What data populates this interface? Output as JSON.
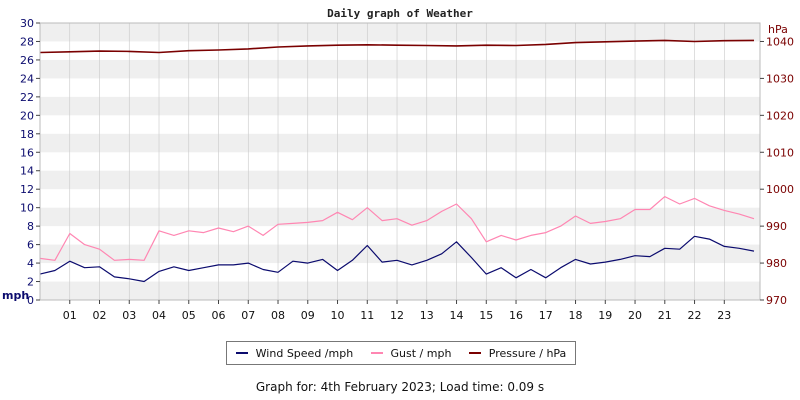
{
  "footer": "Graph for: 4th February 2023; Load time: 0.09 s",
  "colors": {
    "wind": "#0b0b6e",
    "gust": "#ff86b2",
    "pressure": "#7a0000",
    "left_axis": "#0b0b6e",
    "right_axis": "#7a0000",
    "band": "#efefef",
    "grid": "#c8c8c8"
  },
  "chart_data": {
    "type": "line",
    "title": "Daily graph of Weather",
    "x_tick_labels": [
      "01",
      "02",
      "03",
      "04",
      "05",
      "06",
      "07",
      "08",
      "09",
      "10",
      "11",
      "12",
      "13",
      "14",
      "15",
      "16",
      "17",
      "18",
      "19",
      "20",
      "21",
      "22",
      "23"
    ],
    "x_range_hours": [
      0,
      24.2
    ],
    "grid": true,
    "legend_position": "bottom",
    "y_left": {
      "unit": "mph",
      "min": 0,
      "max": 30,
      "step": 2
    },
    "y_right": {
      "unit": "hPa",
      "min": 970,
      "max": 1045,
      "ticks": [
        970,
        980,
        990,
        1000,
        1010,
        1020,
        1030,
        1040
      ]
    },
    "series": [
      {
        "name": "Wind Speed /mph",
        "axis": "left",
        "x": [
          0,
          0.5,
          1,
          1.5,
          2,
          2.5,
          3,
          3.5,
          4,
          4.5,
          5,
          5.5,
          6,
          6.5,
          7,
          7.5,
          8,
          8.5,
          9,
          9.5,
          10,
          10.5,
          11,
          11.5,
          12,
          12.5,
          13,
          13.5,
          14,
          14.5,
          15,
          15.5,
          16,
          16.5,
          17,
          17.5,
          18,
          18.5,
          19,
          19.5,
          20,
          20.5,
          21,
          21.5,
          22,
          22.5,
          23,
          23.5,
          24
        ],
        "values": [
          2.8,
          3.2,
          4.2,
          3.5,
          3.6,
          2.5,
          2.3,
          2.0,
          3.1,
          3.6,
          3.2,
          3.5,
          3.8,
          3.8,
          4.0,
          3.3,
          3.0,
          4.2,
          4.0,
          4.4,
          3.2,
          4.3,
          5.9,
          4.1,
          4.3,
          3.8,
          4.3,
          5.0,
          6.3,
          4.6,
          2.8,
          3.5,
          2.4,
          3.3,
          2.4,
          3.5,
          4.4,
          3.9,
          4.1,
          4.4,
          4.8,
          4.7,
          5.6,
          5.5,
          6.9,
          6.6,
          5.8,
          5.6,
          5.3
        ]
      },
      {
        "name": "Gust / mph",
        "axis": "left",
        "x": [
          0,
          0.5,
          1,
          1.5,
          2,
          2.5,
          3,
          3.5,
          4,
          4.5,
          5,
          5.5,
          6,
          6.5,
          7,
          7.5,
          8,
          8.5,
          9,
          9.5,
          10,
          10.5,
          11,
          11.5,
          12,
          12.5,
          13,
          13.5,
          14,
          14.5,
          15,
          15.5,
          16,
          16.5,
          17,
          17.5,
          18,
          18.5,
          19,
          19.5,
          20,
          20.5,
          21,
          21.5,
          22,
          22.5,
          23,
          23.5,
          24
        ],
        "values": [
          4.5,
          4.3,
          7.2,
          6.0,
          5.5,
          4.3,
          4.4,
          4.3,
          7.5,
          7.0,
          7.5,
          7.3,
          7.8,
          7.4,
          8.0,
          7.0,
          8.2,
          8.3,
          8.4,
          8.6,
          9.5,
          8.7,
          10.0,
          8.6,
          8.8,
          8.1,
          8.6,
          9.6,
          10.4,
          8.8,
          6.3,
          7.0,
          6.5,
          7.0,
          7.3,
          8.0,
          9.1,
          8.3,
          8.5,
          8.8,
          9.8,
          9.8,
          11.2,
          10.4,
          11.0,
          10.2,
          9.7,
          9.3,
          8.8
        ]
      },
      {
        "name": "Pressure / hPa",
        "axis": "right",
        "x": [
          0,
          1,
          2,
          3,
          4,
          5,
          6,
          7,
          8,
          9,
          10,
          11,
          12,
          13,
          14,
          15,
          16,
          17,
          18,
          19,
          20,
          21,
          22,
          23,
          24
        ],
        "values": [
          1037.0,
          1037.2,
          1037.4,
          1037.3,
          1037.0,
          1037.5,
          1037.7,
          1038.0,
          1038.5,
          1038.8,
          1039.0,
          1039.1,
          1039.0,
          1038.9,
          1038.8,
          1039.0,
          1038.9,
          1039.2,
          1039.7,
          1039.9,
          1040.1,
          1040.3,
          1040.0,
          1040.2,
          1040.3
        ]
      }
    ]
  }
}
